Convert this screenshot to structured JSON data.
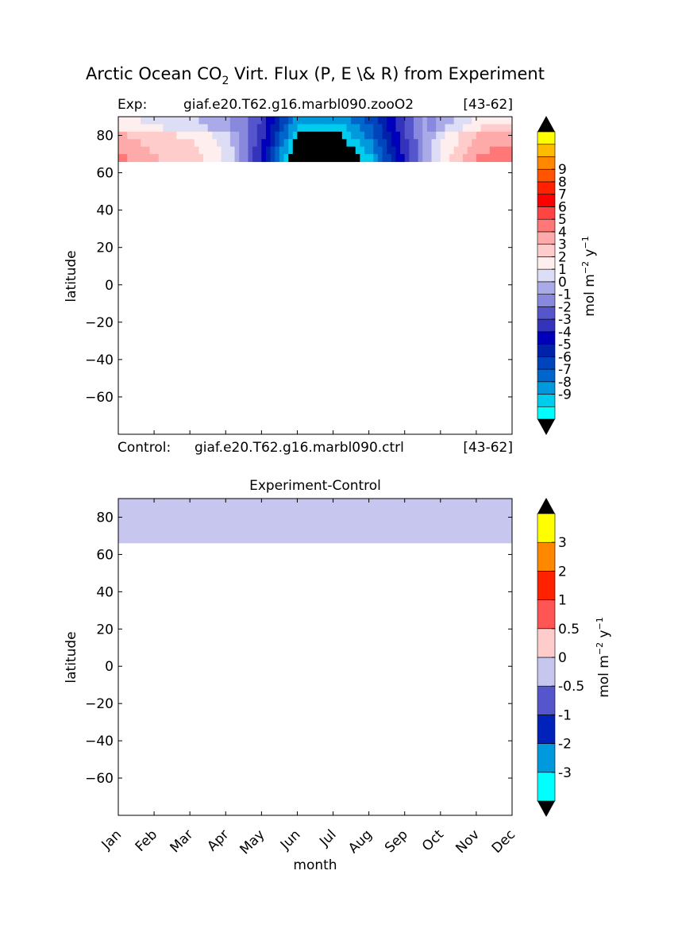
{
  "figure": {
    "title_prefix": "Arctic Ocean CO",
    "title_sub": "2",
    "title_suffix": " Virt. Flux (P, E \\& R) from Experiment"
  },
  "top_panel": {
    "exp_label": "Exp:",
    "exp_name": "giaf.e20.T62.g16.marbl090.zooO2",
    "exp_years": "[43-62]",
    "ctrl_label": "Control:",
    "ctrl_name": "giaf.e20.T62.g16.marbl090.ctrl",
    "ctrl_years": "[43-62]",
    "ylabel": "latitude"
  },
  "bottom_panel": {
    "title": "Experiment-Control",
    "xlabel": "month",
    "ylabel": "latitude"
  },
  "colorbars": {
    "unit_base": "mol m",
    "unit_exp1": "−2",
    "unit_mid": " y",
    "unit_exp2": "−1",
    "top_colors": [
      "#00ffff",
      "#00ccee",
      "#0099dd",
      "#0066cc",
      "#0044bb",
      "#0022aa",
      "#0000bb",
      "#3333bb",
      "#5555cc",
      "#8888dd",
      "#aaaae8",
      "#ddddf5",
      "#ffeeee",
      "#ffcccc",
      "#ffaaaa",
      "#ff7777",
      "#ff4444",
      "#ff0000",
      "#ff2200",
      "#ff5500",
      "#ff8800",
      "#ffbb00",
      "#ffff00"
    ],
    "top_labels": [
      "-9",
      "-8",
      "-7",
      "-6",
      "-5",
      "-4",
      "-3",
      "-2",
      "-1",
      "0",
      "1",
      "2",
      "3",
      "4",
      "5",
      "6",
      "7",
      "8",
      "9"
    ],
    "bottom_colors": [
      "#00ffff",
      "#0099dd",
      "#0022bb",
      "#5555cc",
      "#c6c6ee",
      "#ffcccc",
      "#ff5555",
      "#ff2200",
      "#ff8800",
      "#ffff00"
    ],
    "bottom_labels": [
      "-3",
      "-2",
      "-1",
      "-0.5",
      "0",
      "0.5",
      "1",
      "2",
      "3"
    ]
  },
  "chart_data": [
    {
      "type": "heatmap",
      "title": "",
      "xlabel": "",
      "ylabel": "latitude",
      "x": [
        "Jan",
        "Feb",
        "Mar",
        "Apr",
        "May",
        "Jun",
        "Jul",
        "Aug",
        "Sep",
        "Oct",
        "Nov",
        "Dec"
      ],
      "ylim": [
        -80,
        90
      ],
      "yticks": [
        80,
        60,
        40,
        20,
        0,
        -20,
        -40,
        -60
      ],
      "data_lat_range": [
        66,
        90
      ],
      "values_66_90N": [
        {
          "month": "Jan",
          "value": 4.5
        },
        {
          "month": "Feb",
          "value": 3.5
        },
        {
          "month": "Mar",
          "value": 3.0
        },
        {
          "month": "Apr",
          "value": 1.5
        },
        {
          "month": "May",
          "value": -3.0
        },
        {
          "month": "Jun",
          "value": -10
        },
        {
          "month": "Jul",
          "value": -10
        },
        {
          "month": "Aug",
          "value": -7.0
        },
        {
          "month": "Sep",
          "value": -2.0
        },
        {
          "month": "Oct",
          "value": 2.0
        },
        {
          "month": "Nov",
          "value": 4.5
        },
        {
          "month": "Dec",
          "value": 5.0
        }
      ]
    },
    {
      "type": "heatmap",
      "title": "Experiment-Control",
      "xlabel": "month",
      "ylabel": "latitude",
      "x": [
        "Jan",
        "Feb",
        "Mar",
        "Apr",
        "May",
        "Jun",
        "Jul",
        "Aug",
        "Sep",
        "Oct",
        "Nov",
        "Dec"
      ],
      "ylim": [
        -80,
        90
      ],
      "yticks": [
        80,
        60,
        40,
        20,
        0,
        -20,
        -40,
        -60
      ],
      "data_lat_range": [
        66,
        90
      ],
      "value": -0.25
    }
  ]
}
